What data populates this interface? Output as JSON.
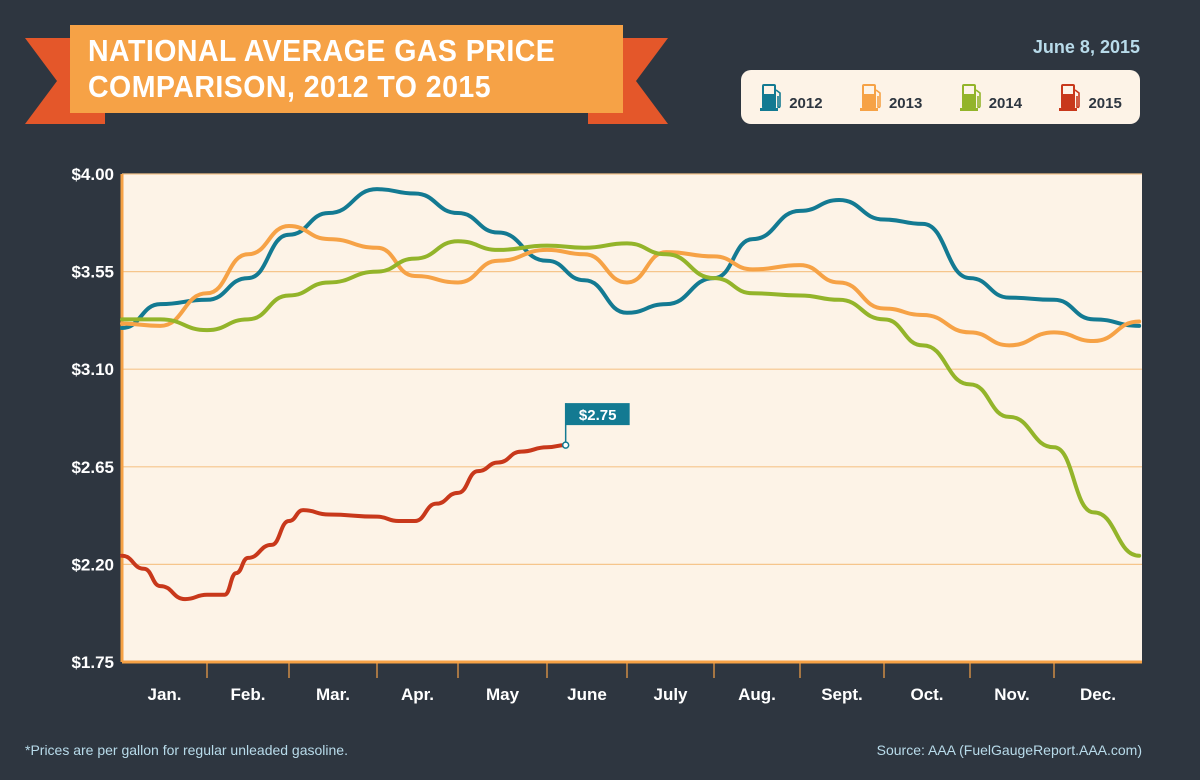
{
  "header": {
    "title": "NATIONAL AVERAGE GAS PRICE\nCOMPARISON, 2012 TO 2015",
    "date": "June 8, 2015"
  },
  "legend": [
    {
      "label": "2012",
      "color": "#137a92",
      "icon": "gas-pump-icon"
    },
    {
      "label": "2013",
      "color": "#f6a246",
      "icon": "gas-pump-icon"
    },
    {
      "label": "2014",
      "color": "#93b42a",
      "icon": "gas-pump-icon"
    },
    {
      "label": "2015",
      "color": "#c8381b",
      "icon": "gas-pump-icon"
    }
  ],
  "footer": {
    "note": "*Prices are per gallon for regular unleaded gasoline.",
    "source": "Source: AAA (FuelGaugeReport.AAA.com)"
  },
  "chart_data": {
    "type": "line",
    "title": "NATIONAL AVERAGE GAS PRICE COMPARISON, 2012 TO 2015",
    "xlabel": "",
    "ylabel": "",
    "ylim": [
      1.75,
      4.0
    ],
    "yticks": [
      "$4.00",
      "$3.55",
      "$3.10",
      "$2.65",
      "$2.20",
      "$1.75"
    ],
    "ytick_values": [
      4.0,
      3.55,
      3.1,
      2.65,
      2.2,
      1.75
    ],
    "xticks": [
      "Jan.",
      "Feb.",
      "Mar.",
      "Apr.",
      "May",
      "June",
      "July",
      "Aug.",
      "Sept.",
      "Oct.",
      "Nov.",
      "Dec."
    ],
    "grid": "horizontal",
    "legend_position": "top-right",
    "annotation": {
      "label": "$2.75",
      "series": "2015",
      "x": "06-08",
      "y": 2.75
    },
    "series": [
      {
        "name": "2012",
        "color": "#137a92",
        "points": [
          [
            "01-01",
            3.29
          ],
          [
            "01-15",
            3.4
          ],
          [
            "02-01",
            3.42
          ],
          [
            "02-15",
            3.52
          ],
          [
            "03-01",
            3.72
          ],
          [
            "03-15",
            3.82
          ],
          [
            "04-01",
            3.93
          ],
          [
            "04-15",
            3.91
          ],
          [
            "05-01",
            3.82
          ],
          [
            "05-15",
            3.73
          ],
          [
            "06-01",
            3.6
          ],
          [
            "06-15",
            3.51
          ],
          [
            "07-01",
            3.36
          ],
          [
            "07-15",
            3.4
          ],
          [
            "08-01",
            3.52
          ],
          [
            "08-15",
            3.7
          ],
          [
            "09-01",
            3.83
          ],
          [
            "09-15",
            3.88
          ],
          [
            "10-01",
            3.79
          ],
          [
            "10-15",
            3.77
          ],
          [
            "11-01",
            3.52
          ],
          [
            "11-15",
            3.43
          ],
          [
            "12-01",
            3.42
          ],
          [
            "12-15",
            3.33
          ],
          [
            "12-31",
            3.3
          ]
        ]
      },
      {
        "name": "2013",
        "color": "#f6a246",
        "points": [
          [
            "01-01",
            3.31
          ],
          [
            "01-15",
            3.3
          ],
          [
            "02-01",
            3.45
          ],
          [
            "02-15",
            3.63
          ],
          [
            "03-01",
            3.76
          ],
          [
            "03-15",
            3.7
          ],
          [
            "04-01",
            3.66
          ],
          [
            "04-15",
            3.53
          ],
          [
            "05-01",
            3.5
          ],
          [
            "05-15",
            3.6
          ],
          [
            "06-01",
            3.65
          ],
          [
            "06-15",
            3.63
          ],
          [
            "07-01",
            3.5
          ],
          [
            "07-15",
            3.64
          ],
          [
            "08-01",
            3.62
          ],
          [
            "08-15",
            3.56
          ],
          [
            "09-01",
            3.58
          ],
          [
            "09-15",
            3.5
          ],
          [
            "10-01",
            3.38
          ],
          [
            "10-15",
            3.35
          ],
          [
            "11-01",
            3.27
          ],
          [
            "11-15",
            3.21
          ],
          [
            "12-01",
            3.27
          ],
          [
            "12-15",
            3.23
          ],
          [
            "12-31",
            3.32
          ]
        ]
      },
      {
        "name": "2014",
        "color": "#93b42a",
        "points": [
          [
            "01-01",
            3.33
          ],
          [
            "01-15",
            3.33
          ],
          [
            "02-01",
            3.28
          ],
          [
            "02-15",
            3.33
          ],
          [
            "03-01",
            3.44
          ],
          [
            "03-15",
            3.5
          ],
          [
            "04-01",
            3.55
          ],
          [
            "04-15",
            3.61
          ],
          [
            "05-01",
            3.69
          ],
          [
            "05-15",
            3.65
          ],
          [
            "06-01",
            3.67
          ],
          [
            "06-15",
            3.66
          ],
          [
            "07-01",
            3.68
          ],
          [
            "07-15",
            3.63
          ],
          [
            "08-01",
            3.52
          ],
          [
            "08-15",
            3.45
          ],
          [
            "09-01",
            3.44
          ],
          [
            "09-15",
            3.42
          ],
          [
            "10-01",
            3.33
          ],
          [
            "10-15",
            3.21
          ],
          [
            "11-01",
            3.03
          ],
          [
            "11-15",
            2.88
          ],
          [
            "12-01",
            2.74
          ],
          [
            "12-15",
            2.44
          ],
          [
            "12-31",
            2.24
          ]
        ]
      },
      {
        "name": "2015",
        "color": "#c8381b",
        "points": [
          [
            "01-01",
            2.24
          ],
          [
            "01-09",
            2.18
          ],
          [
            "01-15",
            2.1
          ],
          [
            "01-24",
            2.04
          ],
          [
            "02-01",
            2.06
          ],
          [
            "02-07",
            2.06
          ],
          [
            "02-11",
            2.16
          ],
          [
            "02-15",
            2.23
          ],
          [
            "02-23",
            2.29
          ],
          [
            "03-01",
            2.4
          ],
          [
            "03-06",
            2.45
          ],
          [
            "03-15",
            2.43
          ],
          [
            "04-01",
            2.42
          ],
          [
            "04-09",
            2.4
          ],
          [
            "04-15",
            2.4
          ],
          [
            "04-23",
            2.48
          ],
          [
            "05-01",
            2.53
          ],
          [
            "05-08",
            2.63
          ],
          [
            "05-15",
            2.67
          ],
          [
            "05-23",
            2.72
          ],
          [
            "06-01",
            2.74
          ],
          [
            "06-08",
            2.75
          ]
        ]
      }
    ]
  }
}
